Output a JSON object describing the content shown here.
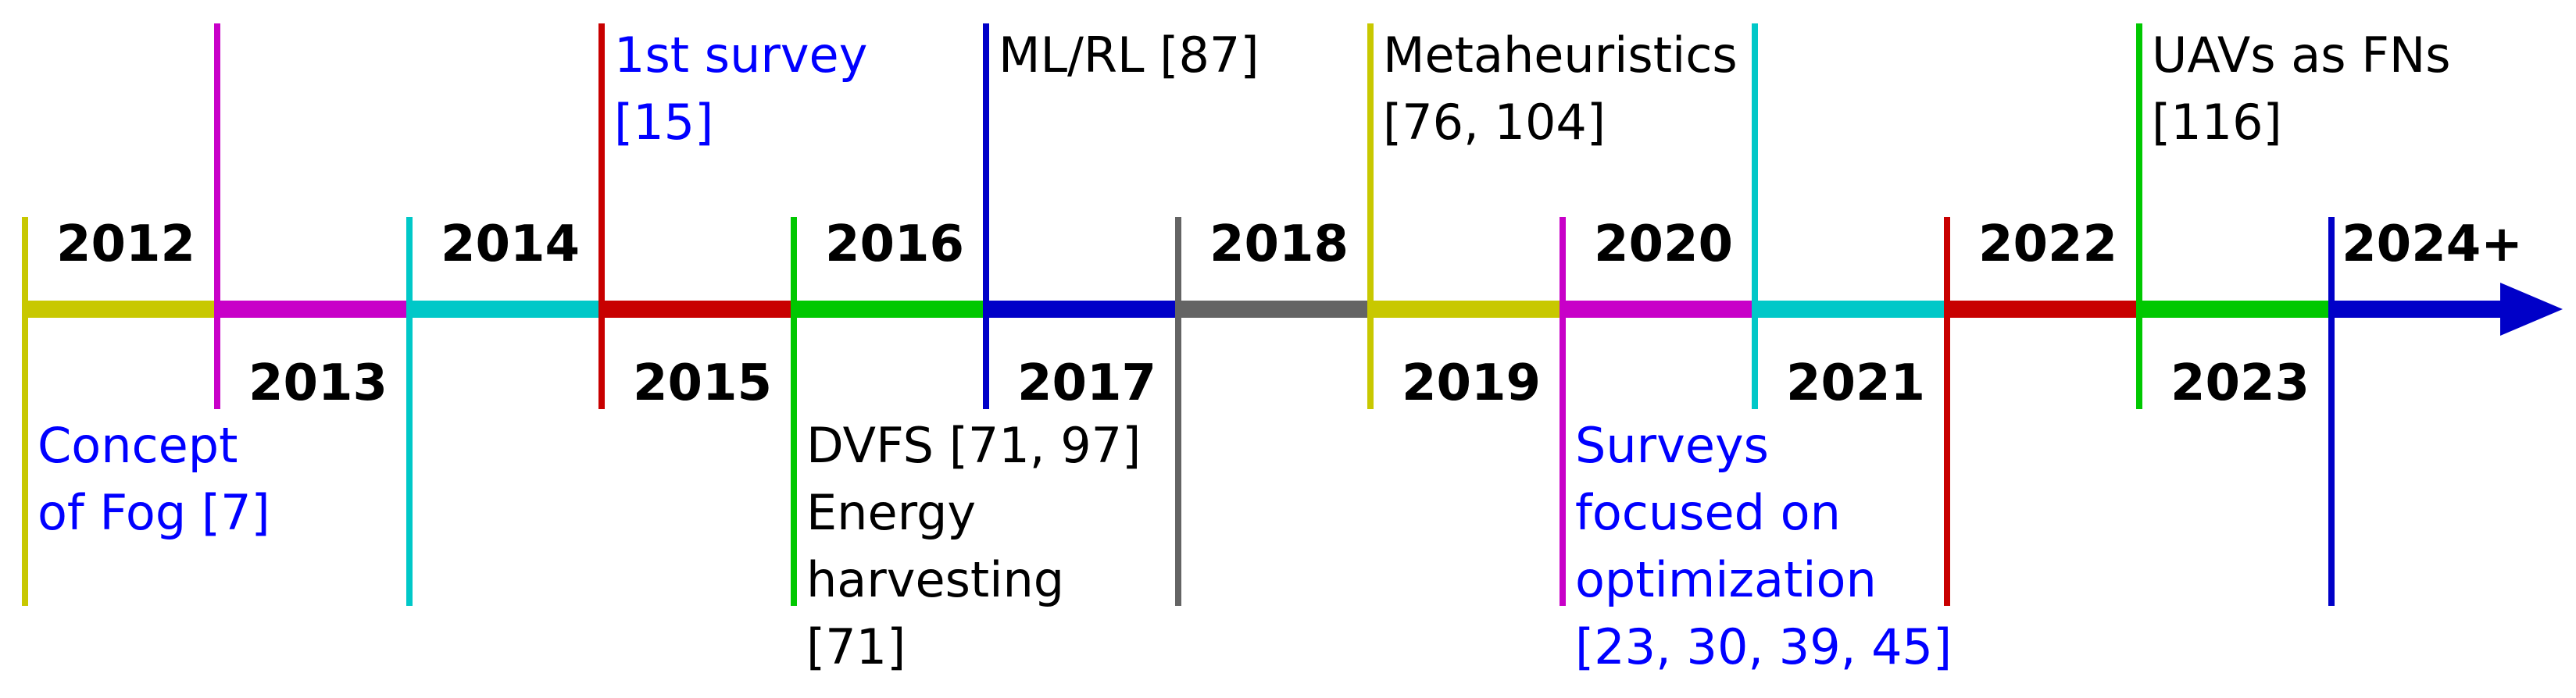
{
  "timeline": {
    "years": [
      {
        "label": "2012",
        "color": "#c8c800"
      },
      {
        "label": "2013",
        "color": "#c800c8"
      },
      {
        "label": "2014",
        "color": "#00c8c8"
      },
      {
        "label": "2015",
        "color": "#c80000"
      },
      {
        "label": "2016",
        "color": "#00c800"
      },
      {
        "label": "2017",
        "color": "#0000c8"
      },
      {
        "label": "2018",
        "color": "#646464"
      },
      {
        "label": "2019",
        "color": "#c8c800"
      },
      {
        "label": "2020",
        "color": "#c800c8"
      },
      {
        "label": "2021",
        "color": "#00c8c8"
      },
      {
        "label": "2022",
        "color": "#c80000"
      },
      {
        "label": "2023",
        "color": "#00c800"
      },
      {
        "label": "2024+",
        "color": "#0000c8"
      }
    ],
    "arrow_color": "#0000c8",
    "annotations": [
      {
        "year": "2012",
        "position": "below",
        "color": "#0000ff",
        "lines": [
          "Concept",
          "of Fog [7]"
        ]
      },
      {
        "year": "2015",
        "position": "above",
        "color": "#0000ff",
        "lines": [
          "1st survey",
          "[15]"
        ]
      },
      {
        "year": "2016",
        "position": "below",
        "color": "#000000",
        "lines": [
          "DVFS [71, 97]",
          "Energy",
          "harvesting",
          "[71]"
        ]
      },
      {
        "year": "2017",
        "position": "above",
        "color": "#000000",
        "lines": [
          "ML/RL [87]"
        ]
      },
      {
        "year": "2019",
        "position": "above",
        "color": "#000000",
        "lines": [
          "Metaheuristics",
          "[76, 104]"
        ]
      },
      {
        "year": "2020",
        "position": "below",
        "color": "#0000ff",
        "lines": [
          "Surveys",
          "focused on",
          "optimization",
          "[23, 30, 39, 45]"
        ]
      },
      {
        "year": "2023",
        "position": "above",
        "color": "#000000",
        "lines": [
          "UAVs as FNs",
          "[116]"
        ]
      }
    ]
  }
}
